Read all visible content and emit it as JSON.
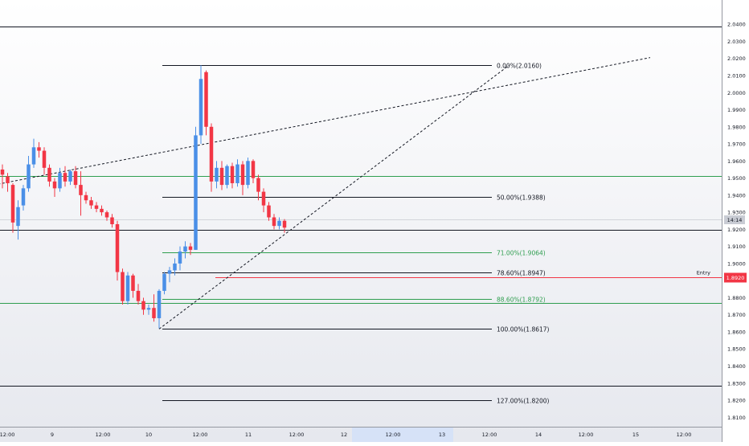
{
  "chart_data": {
    "type": "candlestick",
    "title": "",
    "ylim": [
      1.8045,
      2.0495
    ],
    "price_axis": {
      "ticks": [
        1.81,
        1.82,
        1.83,
        1.84,
        1.85,
        1.86,
        1.87,
        1.88,
        1.89,
        1.9,
        1.91,
        1.92,
        1.93,
        1.94,
        1.95,
        1.96,
        1.97,
        1.98,
        1.99,
        2.0,
        2.01,
        2.02,
        2.03,
        2.04
      ],
      "tick_labels": [
        "1.8100",
        "1.8200",
        "1.8300",
        "1.8400",
        "1.8500",
        "1.8600",
        "1.8700",
        "1.8800",
        "1.8900",
        "1.9000",
        "1.9100",
        "1.9200",
        "1.9300",
        "1.9400",
        "1.9500",
        "1.9600",
        "1.9700",
        "1.9800",
        "1.9900",
        "2.0000",
        "2.0100",
        "2.0200",
        "2.0300",
        "2.0400"
      ]
    },
    "time_axis": {
      "labels": [
        "12:00",
        "9",
        "12:00",
        "10",
        "12:00",
        "11",
        "12:00",
        "12",
        "12:00",
        "13",
        "12:00",
        "14",
        "12:00",
        "15",
        "12:00"
      ],
      "highlight_label": "12:00"
    },
    "current_price_label": "14:14",
    "entry": {
      "label": "Entry",
      "price": 1.892,
      "price_label": "1.8920"
    },
    "fibonacci": [
      {
        "label": "0.00%(2.0160)",
        "price": 2.016,
        "color": "#131722"
      },
      {
        "label": "50.00%(1.9388)",
        "price": 1.9388,
        "color": "#131722"
      },
      {
        "label": "71.00%(1.9064)",
        "price": 1.9064,
        "color": "#2e9e4f"
      },
      {
        "label": "78.60%(1.8947)",
        "price": 1.8947,
        "color": "#131722"
      },
      {
        "label": "88.60%(1.8792)",
        "price": 1.8792,
        "color": "#2e9e4f"
      },
      {
        "label": "100.00%(1.8617)",
        "price": 1.8617,
        "color": "#131722"
      },
      {
        "label": "127.00%(1.8200)",
        "price": 1.82,
        "color": "#131722"
      }
    ],
    "horizontal_levels": [
      {
        "price": 2.0385,
        "color": "#131722"
      },
      {
        "price": 1.951,
        "color": "#2e9e4f"
      },
      {
        "price": 1.9195,
        "color": "#131722"
      },
      {
        "price": 1.877,
        "color": "#2e9e4f"
      },
      {
        "price": 1.8285,
        "color": "#131722"
      }
    ],
    "candles": [
      {
        "o": 1.955,
        "h": 1.958,
        "l": 1.944,
        "c": 1.952
      },
      {
        "o": 1.951,
        "h": 1.953,
        "l": 1.942,
        "c": 1.947
      },
      {
        "o": 1.946,
        "h": 1.947,
        "l": 1.918,
        "c": 1.924
      },
      {
        "o": 1.922,
        "h": 1.937,
        "l": 1.914,
        "c": 1.933
      },
      {
        "o": 1.934,
        "h": 1.946,
        "l": 1.931,
        "c": 1.944
      },
      {
        "o": 1.944,
        "h": 1.963,
        "l": 1.942,
        "c": 1.958
      },
      {
        "o": 1.958,
        "h": 1.973,
        "l": 1.956,
        "c": 1.968
      },
      {
        "o": 1.968,
        "h": 1.971,
        "l": 1.962,
        "c": 1.966
      },
      {
        "o": 1.966,
        "h": 1.968,
        "l": 1.952,
        "c": 1.956
      },
      {
        "o": 1.956,
        "h": 1.958,
        "l": 1.945,
        "c": 1.948
      },
      {
        "o": 1.948,
        "h": 1.95,
        "l": 1.939,
        "c": 1.944
      },
      {
        "o": 1.944,
        "h": 1.956,
        "l": 1.942,
        "c": 1.953
      },
      {
        "o": 1.953,
        "h": 1.957,
        "l": 1.945,
        "c": 1.948
      },
      {
        "o": 1.948,
        "h": 1.955,
        "l": 1.946,
        "c": 1.954
      },
      {
        "o": 1.954,
        "h": 1.957,
        "l": 1.944,
        "c": 1.946
      },
      {
        "o": 1.946,
        "h": 1.954,
        "l": 1.928,
        "c": 1.94
      },
      {
        "o": 1.94,
        "h": 1.942,
        "l": 1.935,
        "c": 1.937
      },
      {
        "o": 1.937,
        "h": 1.939,
        "l": 1.932,
        "c": 1.934
      },
      {
        "o": 1.934,
        "h": 1.936,
        "l": 1.93,
        "c": 1.932
      },
      {
        "o": 1.932,
        "h": 1.934,
        "l": 1.928,
        "c": 1.93
      },
      {
        "o": 1.93,
        "h": 1.931,
        "l": 1.925,
        "c": 1.927
      },
      {
        "o": 1.927,
        "h": 1.929,
        "l": 1.921,
        "c": 1.923
      },
      {
        "o": 1.923,
        "h": 1.925,
        "l": 1.89,
        "c": 1.895
      },
      {
        "o": 1.895,
        "h": 1.897,
        "l": 1.876,
        "c": 1.878
      },
      {
        "o": 1.878,
        "h": 1.895,
        "l": 1.876,
        "c": 1.893
      },
      {
        "o": 1.893,
        "h": 1.894,
        "l": 1.88,
        "c": 1.884
      },
      {
        "o": 1.884,
        "h": 1.888,
        "l": 1.876,
        "c": 1.878
      },
      {
        "o": 1.878,
        "h": 1.88,
        "l": 1.87,
        "c": 1.873
      },
      {
        "o": 1.873,
        "h": 1.876,
        "l": 1.87,
        "c": 1.874
      },
      {
        "o": 1.874,
        "h": 1.882,
        "l": 1.866,
        "c": 1.868
      },
      {
        "o": 1.868,
        "h": 1.885,
        "l": 1.862,
        "c": 1.884
      },
      {
        "o": 1.884,
        "h": 1.895,
        "l": 1.882,
        "c": 1.894
      },
      {
        "o": 1.894,
        "h": 1.898,
        "l": 1.889,
        "c": 1.896
      },
      {
        "o": 1.896,
        "h": 1.903,
        "l": 1.893,
        "c": 1.9
      },
      {
        "o": 1.9,
        "h": 1.91,
        "l": 1.896,
        "c": 1.907
      },
      {
        "o": 1.907,
        "h": 1.913,
        "l": 1.903,
        "c": 1.91
      },
      {
        "o": 1.91,
        "h": 1.912,
        "l": 1.905,
        "c": 1.908
      },
      {
        "o": 1.908,
        "h": 1.98,
        "l": 1.908,
        "c": 1.975
      },
      {
        "o": 1.975,
        "h": 2.016,
        "l": 1.97,
        "c": 2.008
      },
      {
        "o": 2.012,
        "h": 2.013,
        "l": 1.975,
        "c": 1.98
      },
      {
        "o": 1.98,
        "h": 1.982,
        "l": 1.942,
        "c": 1.948
      },
      {
        "o": 1.948,
        "h": 1.96,
        "l": 1.944,
        "c": 1.956
      },
      {
        "o": 1.956,
        "h": 1.96,
        "l": 1.943,
        "c": 1.946
      },
      {
        "o": 1.946,
        "h": 1.958,
        "l": 1.944,
        "c": 1.957
      },
      {
        "o": 1.957,
        "h": 1.959,
        "l": 1.944,
        "c": 1.947
      },
      {
        "o": 1.947,
        "h": 1.961,
        "l": 1.945,
        "c": 1.958
      },
      {
        "o": 1.958,
        "h": 1.96,
        "l": 1.94,
        "c": 1.946
      },
      {
        "o": 1.946,
        "h": 1.962,
        "l": 1.944,
        "c": 1.96
      },
      {
        "o": 1.96,
        "h": 1.961,
        "l": 1.947,
        "c": 1.95
      },
      {
        "o": 1.95,
        "h": 1.952,
        "l": 1.937,
        "c": 1.942
      },
      {
        "o": 1.942,
        "h": 1.944,
        "l": 1.93,
        "c": 1.934
      },
      {
        "o": 1.934,
        "h": 1.936,
        "l": 1.925,
        "c": 1.927
      },
      {
        "o": 1.927,
        "h": 1.929,
        "l": 1.92,
        "c": 1.922
      },
      {
        "o": 1.922,
        "h": 1.927,
        "l": 1.92,
        "c": 1.925
      },
      {
        "o": 1.925,
        "h": 1.926,
        "l": 1.918,
        "c": 1.921
      }
    ],
    "trendlines": [
      {
        "style": "dashed",
        "from": {
          "bar": -10,
          "price": 1.941
        },
        "to": {
          "bar": 124,
          "price": 2.0205
        }
      },
      {
        "style": "dashed",
        "from": {
          "bar": 30,
          "price": 1.8617
        },
        "to": {
          "bar": 97,
          "price": 2.016
        }
      }
    ],
    "colors": {
      "up": "#4a8fe7",
      "down": "#f23645",
      "entry": "#f23645",
      "highlight": "#d6e2f7"
    }
  }
}
